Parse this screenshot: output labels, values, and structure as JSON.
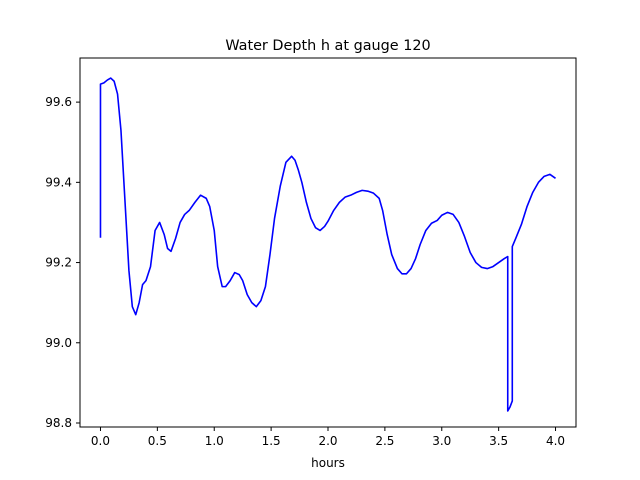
{
  "chart_data": {
    "type": "line",
    "title": "Water Depth h at gauge 120",
    "xlabel": "hours",
    "ylabel": "",
    "xlim": [
      -0.18,
      4.18
    ],
    "ylim": [
      98.79,
      99.71
    ],
    "x_ticks": [
      0.0,
      0.5,
      1.0,
      1.5,
      2.0,
      2.5,
      3.0,
      3.5,
      4.0
    ],
    "x_tick_labels": [
      "0.0",
      "0.5",
      "1.0",
      "1.5",
      "2.0",
      "2.5",
      "3.0",
      "3.5",
      "4.0"
    ],
    "y_ticks": [
      98.8,
      99.0,
      99.2,
      99.4,
      99.6
    ],
    "y_tick_labels": [
      "98.8",
      "99.0",
      "99.2",
      "99.4",
      "99.6"
    ],
    "grid": false,
    "legend": "none",
    "series": [
      {
        "color": "#0000ff",
        "x": [
          0.0,
          0.0,
          0.03,
          0.06,
          0.09,
          0.12,
          0.15,
          0.18,
          0.21,
          0.25,
          0.28,
          0.31,
          0.34,
          0.37,
          0.4,
          0.44,
          0.48,
          0.52,
          0.56,
          0.59,
          0.62,
          0.66,
          0.7,
          0.74,
          0.78,
          0.83,
          0.88,
          0.93,
          0.96,
          1.0,
          1.03,
          1.07,
          1.1,
          1.14,
          1.18,
          1.22,
          1.25,
          1.29,
          1.33,
          1.37,
          1.41,
          1.45,
          1.49,
          1.53,
          1.58,
          1.63,
          1.68,
          1.71,
          1.74,
          1.77,
          1.81,
          1.85,
          1.89,
          1.93,
          1.97,
          2.0,
          2.05,
          2.1,
          2.15,
          2.2,
          2.25,
          2.3,
          2.35,
          2.4,
          2.45,
          2.48,
          2.52,
          2.56,
          2.61,
          2.65,
          2.69,
          2.73,
          2.77,
          2.81,
          2.86,
          2.91,
          2.96,
          3.0,
          3.05,
          3.1,
          3.15,
          3.2,
          3.25,
          3.3,
          3.35,
          3.4,
          3.45,
          3.5,
          3.55,
          3.58,
          3.58,
          3.6,
          3.62,
          3.62,
          3.65,
          3.7,
          3.75,
          3.8,
          3.85,
          3.9,
          3.95,
          4.0
        ],
        "y": [
          99.262,
          99.645,
          99.648,
          99.655,
          99.66,
          99.652,
          99.62,
          99.53,
          99.38,
          99.18,
          99.09,
          99.07,
          99.1,
          99.145,
          99.155,
          99.19,
          99.28,
          99.3,
          99.27,
          99.235,
          99.228,
          99.26,
          99.3,
          99.32,
          99.33,
          99.35,
          99.368,
          99.36,
          99.34,
          99.28,
          99.19,
          99.14,
          99.14,
          99.155,
          99.175,
          99.17,
          99.155,
          99.12,
          99.1,
          99.09,
          99.105,
          99.14,
          99.22,
          99.31,
          99.39,
          99.45,
          99.465,
          99.455,
          99.43,
          99.4,
          99.35,
          99.31,
          99.287,
          99.28,
          99.29,
          99.303,
          99.33,
          99.35,
          99.363,
          99.368,
          99.375,
          99.38,
          99.378,
          99.373,
          99.36,
          99.33,
          99.27,
          99.22,
          99.185,
          99.172,
          99.172,
          99.185,
          99.21,
          99.245,
          99.28,
          99.298,
          99.305,
          99.318,
          99.325,
          99.32,
          99.3,
          99.265,
          99.225,
          99.2,
          99.188,
          99.185,
          99.19,
          99.2,
          99.21,
          99.215,
          98.83,
          98.84,
          98.855,
          99.24,
          99.26,
          99.295,
          99.34,
          99.375,
          99.4,
          99.415,
          99.42,
          99.41
        ]
      }
    ]
  }
}
